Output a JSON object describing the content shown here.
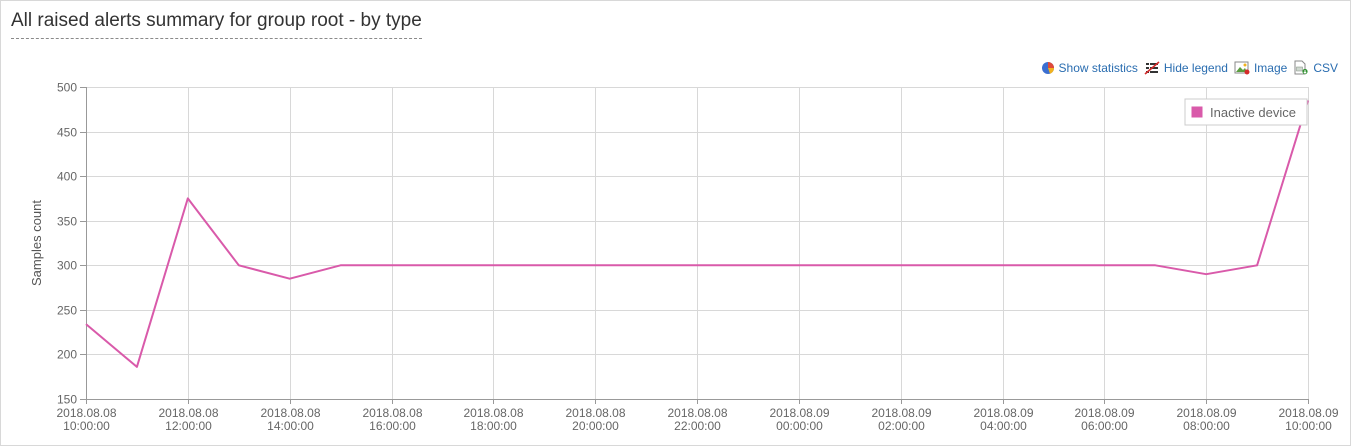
{
  "header": {
    "title": "All raised alerts summary for group root - by type"
  },
  "toolbar": {
    "show_statistics": "Show statistics",
    "hide_legend": "Hide legend",
    "image": "Image",
    "csv": "CSV"
  },
  "colors": {
    "series": "#d95aaa",
    "grid": "#d8d8d8",
    "link": "#2a6db0"
  },
  "chart_data": {
    "type": "line",
    "title": "All raised alerts summary for group root - by type",
    "xlabel": "",
    "ylabel": "Samples count",
    "ylim": [
      150,
      500
    ],
    "yticks": [
      150,
      200,
      250,
      300,
      350,
      400,
      450,
      500
    ],
    "xlim": [
      "2018-08-08 10:00",
      "2018-08-09 10:00"
    ],
    "xticks": [
      [
        "2018.08.08",
        "10:00:00"
      ],
      [
        "2018.08.08",
        "12:00:00"
      ],
      [
        "2018.08.08",
        "14:00:00"
      ],
      [
        "2018.08.08",
        "16:00:00"
      ],
      [
        "2018.08.08",
        "18:00:00"
      ],
      [
        "2018.08.08",
        "20:00:00"
      ],
      [
        "2018.08.08",
        "22:00:00"
      ],
      [
        "2018.08.09",
        "00:00:00"
      ],
      [
        "2018.08.09",
        "02:00:00"
      ],
      [
        "2018.08.09",
        "04:00:00"
      ],
      [
        "2018.08.09",
        "06:00:00"
      ],
      [
        "2018.08.09",
        "08:00:00"
      ],
      [
        "2018.08.09",
        "10:00:00"
      ]
    ],
    "grid": true,
    "legend_position": "top-right",
    "series": [
      {
        "name": "Inactive device",
        "color": "#d95aaa",
        "x": [
          "2018-08-08 10:00",
          "2018-08-08 11:00",
          "2018-08-08 12:00",
          "2018-08-08 13:00",
          "2018-08-08 14:00",
          "2018-08-08 15:00",
          "2018-08-08 16:00",
          "2018-08-08 17:00",
          "2018-08-08 18:00",
          "2018-08-08 19:00",
          "2018-08-08 20:00",
          "2018-08-08 21:00",
          "2018-08-08 22:00",
          "2018-08-08 23:00",
          "2018-08-09 00:00",
          "2018-08-09 01:00",
          "2018-08-09 02:00",
          "2018-08-09 03:00",
          "2018-08-09 04:00",
          "2018-08-09 05:00",
          "2018-08-09 06:00",
          "2018-08-09 07:00",
          "2018-08-09 08:00",
          "2018-08-09 09:00",
          "2018-08-09 10:00"
        ],
        "values": [
          234,
          186,
          375,
          300,
          285,
          300,
          300,
          300,
          300,
          300,
          300,
          300,
          300,
          300,
          300,
          300,
          300,
          300,
          300,
          300,
          300,
          300,
          290,
          300,
          485
        ]
      }
    ]
  }
}
